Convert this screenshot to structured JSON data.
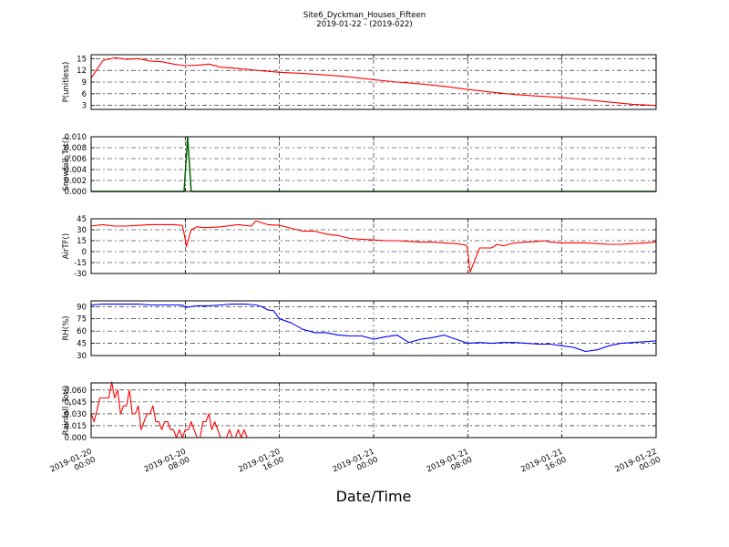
{
  "figure": {
    "title": "Site6_Dyckman_Houses_Fifteen",
    "subtitle": "2019-01-22 - (2019-022)",
    "xlabel": "Date/Time",
    "x_ticks": [
      "2019-01-20\n00:00",
      "2019-01-20\n08:00",
      "2019-01-20\n16:00",
      "2019-01-21\n00:00",
      "2019-01-21\n08:00",
      "2019-01-21\n16:00",
      "2019-01-22\n00:00"
    ]
  },
  "chart_data": [
    {
      "type": "line",
      "ylabel": "P(unitless)",
      "ylim": [
        2,
        16
      ],
      "yticks": [
        "3",
        "6",
        "9",
        "12",
        "15"
      ],
      "color": "#ff0000",
      "grid": true,
      "series": [
        {
          "x": [
            0,
            1,
            2,
            3,
            4,
            5,
            6,
            7,
            8,
            9,
            10,
            11,
            12,
            14,
            16,
            18,
            20,
            22,
            24,
            26,
            28,
            30,
            32,
            34,
            36,
            38,
            40,
            42,
            44,
            46,
            48
          ],
          "y": [
            10,
            14.5,
            15.2,
            14.8,
            15,
            14.4,
            14.2,
            13.6,
            13.2,
            13.3,
            13.6,
            12.8,
            12.6,
            12,
            11.5,
            11.2,
            10.8,
            10.3,
            9.6,
            9,
            8.5,
            7.9,
            7.1,
            6.4,
            5.8,
            5.4,
            5,
            4.5,
            3.9,
            3.3,
            3
          ]
        }
      ]
    },
    {
      "type": "line",
      "ylabel": "Snowfall_Tot()",
      "ylim": [
        0,
        0.01
      ],
      "yticks": [
        "0.000",
        "0.002",
        "0.004",
        "0.006",
        "0.008",
        "0.010"
      ],
      "color": "#006400",
      "grid": true,
      "series": [
        {
          "x": [
            0,
            7.9,
            8.2,
            8.5,
            48
          ],
          "y": [
            0,
            0,
            0.01,
            0,
            0
          ]
        }
      ]
    },
    {
      "type": "line",
      "ylabel": "AirTF()",
      "ylim": [
        -30,
        45
      ],
      "yticks": [
        "-30",
        "-15",
        "0",
        "15",
        "30",
        "45"
      ],
      "color": "#ff0000",
      "grid": true,
      "series": [
        {
          "x": [
            0,
            1,
            2,
            3,
            4,
            5,
            6,
            7,
            7.75,
            7.9,
            8.1,
            8.5,
            9,
            9.5,
            10,
            11,
            12,
            12.5,
            13,
            13.6,
            14,
            15,
            16,
            17,
            18,
            19,
            20,
            21,
            22,
            23,
            24,
            25,
            26,
            27,
            28,
            29,
            30,
            31,
            31.8,
            31.95,
            32.2,
            33,
            34,
            34.5,
            35,
            36,
            37,
            38,
            38.5,
            39,
            40,
            41,
            42,
            43,
            44,
            45,
            46,
            47,
            48
          ],
          "y": [
            35,
            37,
            35,
            35,
            36,
            37,
            37,
            37,
            36,
            25,
            7,
            30,
            34,
            33,
            33,
            34,
            36,
            37,
            36,
            35,
            42,
            37,
            36,
            32,
            28,
            28,
            24,
            22,
            18,
            17,
            16,
            15,
            15,
            14,
            13,
            13,
            12,
            11,
            9,
            7,
            -28,
            5,
            5,
            10,
            8,
            12,
            13,
            14,
            15,
            13,
            12,
            12,
            12,
            11,
            10,
            10,
            11,
            12,
            13
          ]
        }
      ]
    },
    {
      "type": "line",
      "ylabel": "RH(%)",
      "ylim": [
        30,
        97
      ],
      "yticks": [
        "30",
        "45",
        "60",
        "75",
        "90"
      ],
      "color": "#0000ff",
      "grid": true,
      "series": [
        {
          "x": [
            0,
            1,
            2,
            3,
            4,
            5,
            6,
            7,
            7.75,
            8,
            9,
            10,
            11,
            12,
            13,
            14,
            14.5,
            15,
            15.5,
            16,
            17,
            18,
            19,
            20,
            21,
            22,
            23,
            24,
            25,
            26,
            27,
            28,
            29,
            30,
            31,
            32,
            33,
            34,
            35,
            36,
            37,
            38,
            39,
            40,
            41,
            42,
            43,
            44,
            45,
            46,
            47,
            48
          ],
          "y": [
            92,
            93,
            93,
            93,
            93,
            92,
            92,
            92,
            92,
            89,
            91,
            91,
            92,
            93,
            93,
            92,
            90,
            86,
            85,
            75,
            70,
            62,
            58,
            58,
            55,
            54,
            54,
            50,
            53,
            55,
            46,
            50,
            52,
            55,
            50,
            45,
            46,
            45,
            46,
            46,
            45,
            44,
            44,
            42,
            40,
            35,
            37,
            42,
            45,
            46,
            47,
            48
          ]
        }
      ]
    },
    {
      "type": "line",
      "ylabel": "Rainfall_Tot()",
      "ylim": [
        0,
        0.069
      ],
      "yticks": [
        "0.000",
        "0.015",
        "0.030",
        "0.045",
        "0.060"
      ],
      "color": "#ff0000",
      "grid": true,
      "series": [
        {
          "x": [
            0,
            0.25,
            0.5,
            0.75,
            1,
            1.25,
            1.5,
            1.75,
            2,
            2.25,
            2.5,
            2.75,
            3,
            3.25,
            3.5,
            3.75,
            4,
            4.25,
            4.5,
            4.75,
            5,
            5.25,
            5.5,
            5.75,
            6,
            6.25,
            6.5,
            6.75,
            7,
            7.25,
            7.5,
            7.75,
            8,
            8.25,
            8.5,
            8.75,
            9,
            9.25,
            9.5,
            9.75,
            10,
            10.25,
            10.5,
            10.75,
            11,
            11.25,
            11.5,
            11.75,
            12,
            12.25,
            12.5,
            12.75,
            13,
            13.25,
            13.5,
            13.75,
            14,
            48
          ],
          "y": [
            0.03,
            0.02,
            0.035,
            0.05,
            0.05,
            0.05,
            0.05,
            0.07,
            0.05,
            0.06,
            0.03,
            0.04,
            0.04,
            0.06,
            0.03,
            0.03,
            0.04,
            0.01,
            0.02,
            0.03,
            0.03,
            0.04,
            0.02,
            0.02,
            0.01,
            0.02,
            0.02,
            0.01,
            0.01,
            0,
            0.01,
            0,
            0.01,
            0.01,
            0.02,
            0.01,
            0,
            0,
            0.02,
            0.02,
            0.03,
            0.01,
            0.02,
            0.01,
            0,
            0,
            0,
            0.01,
            0,
            0,
            0.01,
            0,
            0.01,
            0,
            0,
            0,
            0,
            0
          ]
        }
      ]
    }
  ]
}
